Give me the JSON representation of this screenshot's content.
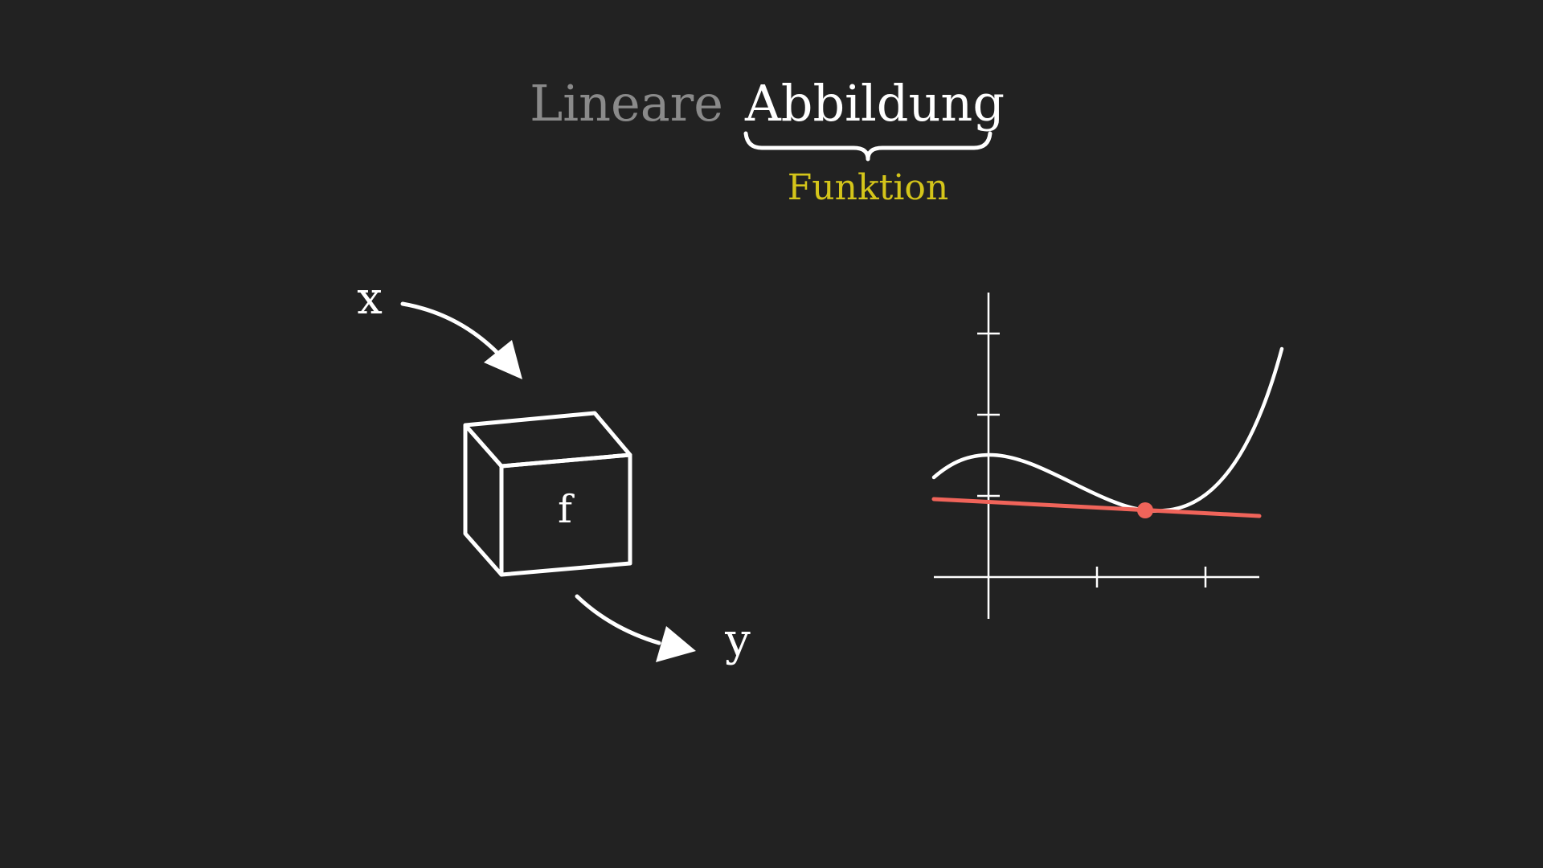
{
  "title": {
    "word_dim": "Lineare",
    "word_main": "Abbildung",
    "annotation": "Funktion"
  },
  "diagram": {
    "input_label": "x",
    "box_label": "f",
    "output_label": "y"
  },
  "colors": {
    "background": "#222222",
    "foreground": "#ffffff",
    "dim_text": "#8a8a8a",
    "highlight": "#d4c51a",
    "tangent": "#f0645a"
  },
  "icons": {
    "input_arrow": "curved-arrow-icon",
    "output_arrow": "curved-arrow-icon",
    "function_box": "cube-icon",
    "brace": "underbrace-icon"
  }
}
